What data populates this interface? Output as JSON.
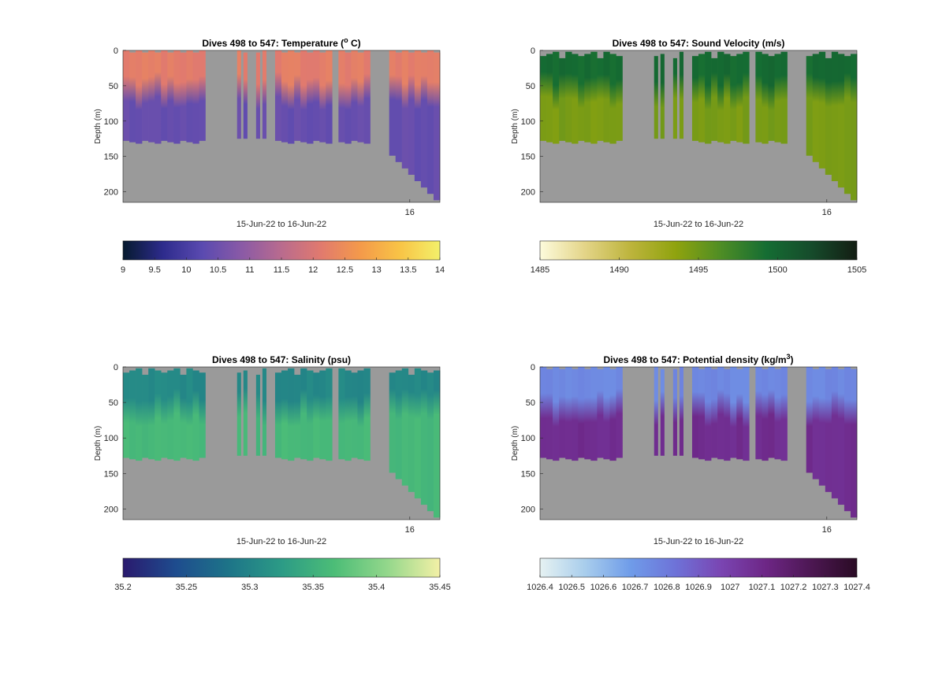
{
  "figure": {
    "name": "glider-section-figure"
  },
  "chart_data": [
    {
      "type": "heatmap",
      "id": "temperature",
      "title": "Dives 498 to 547: Temperature (",
      "title_sup": "o",
      "title_after": " C)",
      "ylabel": "Depth (m)",
      "xlabel": "15-Jun-22 to 16-Jun-22",
      "ylim": [
        215,
        0
      ],
      "yticks": [
        "0",
        "50",
        "100",
        "150",
        "200"
      ],
      "xtick_label": "16",
      "colorbar": {
        "min": 9,
        "max": 14,
        "ticks": [
          "9",
          "9.5",
          "10",
          "10.5",
          "11",
          "11.5",
          "12",
          "12.5",
          "13",
          "13.5",
          "14"
        ],
        "colors": [
          "#061a2e",
          "#2d2b8c",
          "#5a4ab0",
          "#8a5aa6",
          "#b96b8e",
          "#e17a6e",
          "#f49a4a",
          "#f8c446",
          "#f3f06a"
        ]
      },
      "section": {
        "upper_value": 12.2,
        "upper_depth": 50,
        "lower_value": 10.4,
        "bottom_color": "#9a9a9a"
      }
    },
    {
      "type": "heatmap",
      "id": "sound-velocity",
      "title": "Dives 498 to 547: Sound Velocity (m/s)",
      "title_sup": "",
      "title_after": "",
      "ylabel": "Depth (m)",
      "xlabel": "15-Jun-22 to 16-Jun-22",
      "ylim": [
        215,
        0
      ],
      "yticks": [
        "0",
        "50",
        "100",
        "150",
        "200"
      ],
      "xtick_label": "16",
      "colorbar": {
        "min": 1485,
        "max": 1505,
        "ticks": [
          "1485",
          "1490",
          "1495",
          "1500",
          "1505"
        ],
        "colors": [
          "#fdfbdc",
          "#e3d487",
          "#bdb43c",
          "#8fa30e",
          "#4e8d25",
          "#156d33",
          "#164b2b",
          "#131d13"
        ]
      },
      "section": {
        "upper_value": 1499.5,
        "upper_depth": 50,
        "lower_value": 1494.5,
        "bottom_color": "#9a9a9a"
      }
    },
    {
      "type": "heatmap",
      "id": "salinity",
      "title": "Dives 498 to 547: Salinity (psu)",
      "title_sup": "",
      "title_after": "",
      "ylabel": "Depth (m)",
      "xlabel": "15-Jun-22 to 16-Jun-22",
      "ylim": [
        215,
        0
      ],
      "yticks": [
        "0",
        "50",
        "100",
        "150",
        "200"
      ],
      "xtick_label": "16",
      "colorbar": {
        "min": 35.2,
        "max": 35.45,
        "ticks": [
          "35.2",
          "35.25",
          "35.3",
          "35.35",
          "35.4",
          "35.45"
        ],
        "colors": [
          "#2a1a6e",
          "#1e4c8e",
          "#1d7488",
          "#2c9b86",
          "#4cbd77",
          "#93d78b",
          "#f3f0a6"
        ]
      },
      "section": {
        "upper_value": 35.305,
        "upper_depth": 50,
        "lower_value": 35.36,
        "bottom_color": "#9a9a9a"
      }
    },
    {
      "type": "heatmap",
      "id": "potential-density",
      "title": "Dives 498 to 547: Potential density (kg/m",
      "title_sup": "3",
      "title_after": ")",
      "ylabel": "Depth (m)",
      "xlabel": "15-Jun-22 to 16-Jun-22",
      "ylim": [
        215,
        0
      ],
      "yticks": [
        "0",
        "50",
        "100",
        "150",
        "200"
      ],
      "xtick_label": "16",
      "colorbar": {
        "min": 1026.4,
        "max": 1027.4,
        "ticks": [
          "1026.4",
          "1026.5",
          "1026.6",
          "1026.7",
          "1026.8",
          "1026.9",
          "1027",
          "1027.1",
          "1027.2",
          "1027.3",
          "1027.4"
        ],
        "colors": [
          "#e6f2f2",
          "#a8cdec",
          "#6f9ce9",
          "#6e72d8",
          "#7a45b2",
          "#6d2685",
          "#4c1752",
          "#2a0b24"
        ]
      },
      "section": {
        "upper_value": 1026.75,
        "upper_depth": 50,
        "lower_value": 1027.08,
        "bottom_color": "#9a9a9a"
      }
    }
  ]
}
